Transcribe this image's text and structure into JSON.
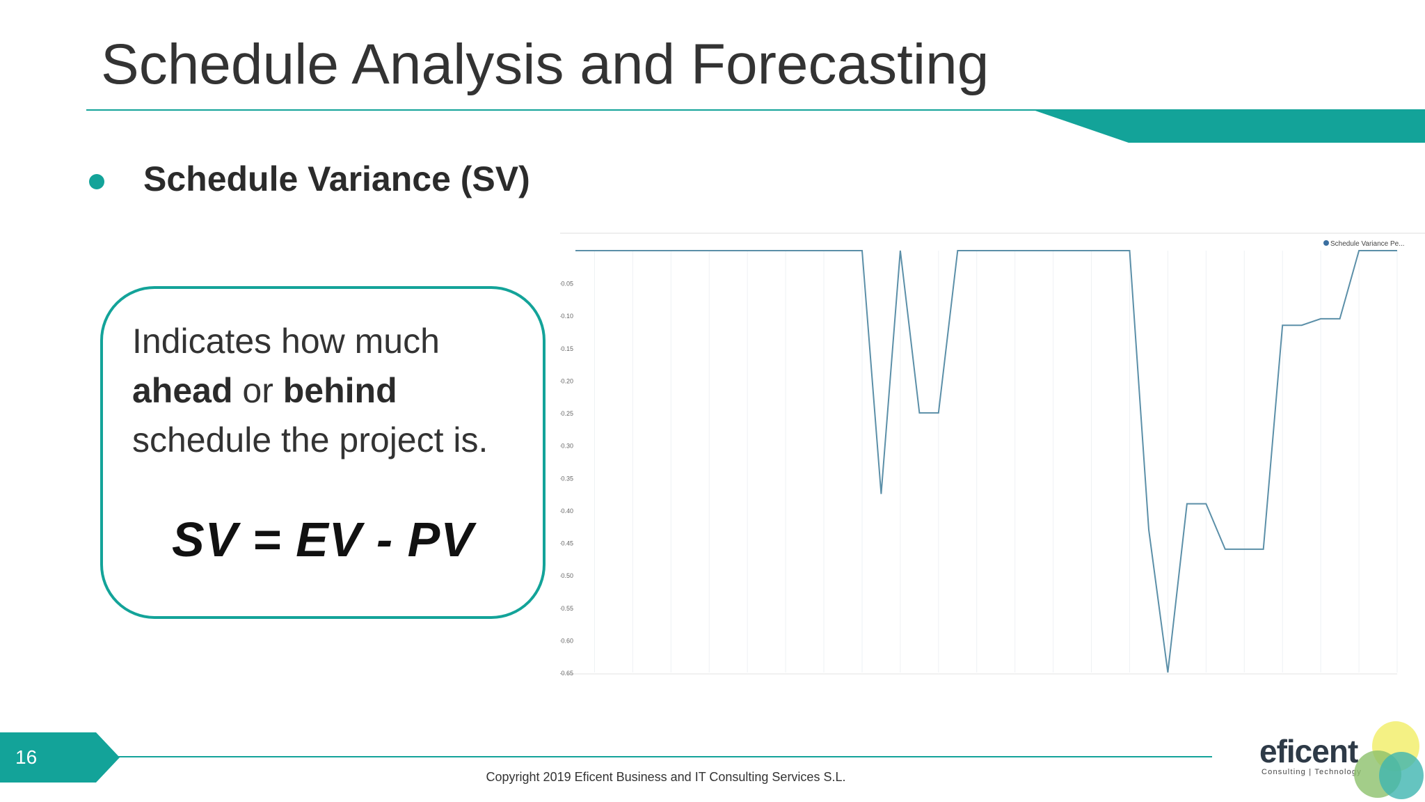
{
  "slide": {
    "title": "Schedule Analysis and Forecasting",
    "bullet": "Schedule Variance (SV)",
    "definition": {
      "line1": "Indicates how much",
      "ahead": "ahead",
      "or": " or ",
      "behind": "behind",
      "line3": "schedule the project is."
    },
    "formula": "SV = EV - PV",
    "page_number": "16",
    "copyright": "Copyright 2019 Eficent Business and IT Consulting Services S.L.",
    "logo": {
      "name": "eficent",
      "tagline": "Consulting | Technology"
    },
    "colors": {
      "accent": "#13a399",
      "line": "#5b8fa8",
      "text": "#333333"
    }
  },
  "chart_data": {
    "type": "line",
    "title": "",
    "xlabel": "",
    "ylabel": "",
    "ylim": [
      -0.65,
      0.0
    ],
    "yticks": [
      "-0.05",
      "-0.10",
      "-0.15",
      "-0.20",
      "-0.25",
      "-0.30",
      "-0.35",
      "-0.40",
      "-0.45",
      "-0.50",
      "-0.55",
      "-0.60",
      "-0.65"
    ],
    "legend": {
      "position": "top-right",
      "entries": [
        "Schedule Variance Pe..."
      ]
    },
    "grid": {
      "vertical": true,
      "horizontal": false
    },
    "series": [
      {
        "name": "Schedule Variance Pe...",
        "color": "#5b8fa8",
        "points": [
          [
            0,
            0.0
          ],
          [
            15,
            0.0
          ],
          [
            16,
            -0.375
          ],
          [
            17,
            0.0
          ],
          [
            18,
            -0.25
          ],
          [
            19,
            -0.25
          ],
          [
            20,
            0.0
          ],
          [
            29,
            0.0
          ],
          [
            30,
            -0.43
          ],
          [
            31,
            -0.65
          ],
          [
            32,
            -0.39
          ],
          [
            33,
            -0.39
          ],
          [
            34,
            -0.46
          ],
          [
            35,
            -0.46
          ],
          [
            36,
            -0.46
          ],
          [
            37,
            -0.115
          ],
          [
            38,
            -0.115
          ],
          [
            39,
            -0.105
          ],
          [
            40,
            -0.105
          ],
          [
            41,
            0.0
          ],
          [
            43,
            0.0
          ]
        ]
      }
    ]
  }
}
